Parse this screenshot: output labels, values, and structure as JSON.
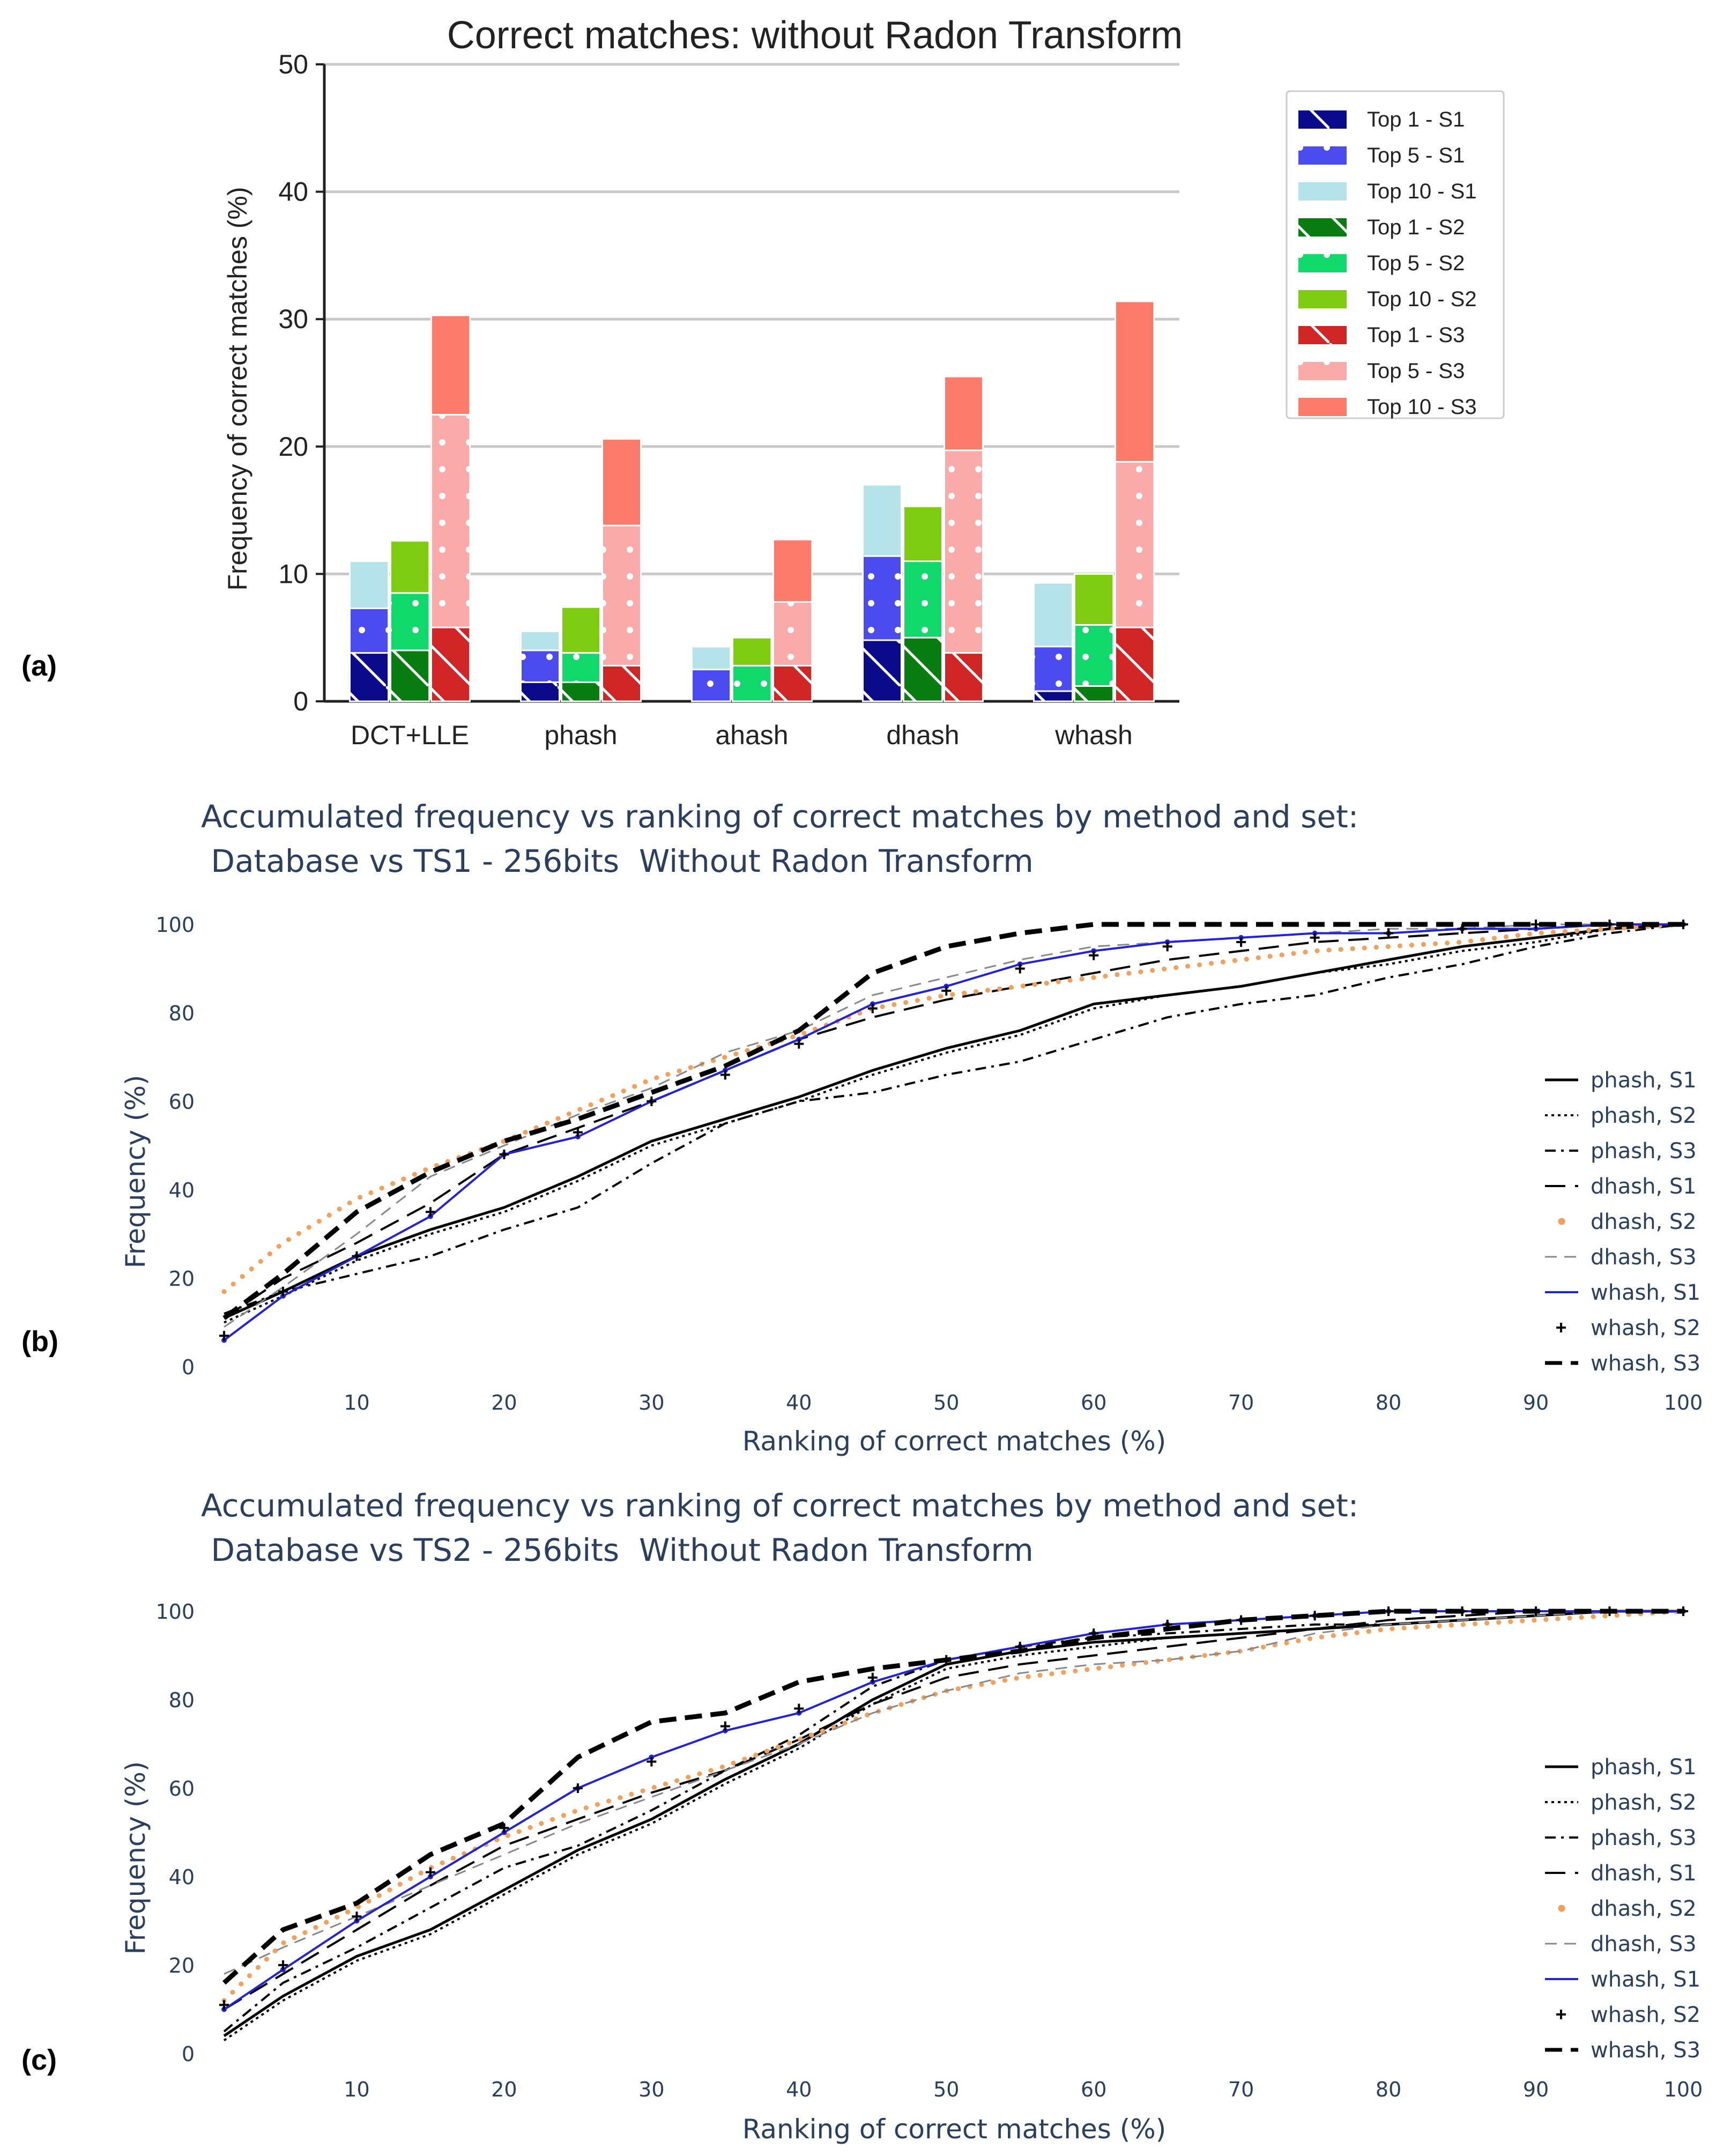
{
  "chart_data": [
    {
      "type": "bar",
      "panel_label": "(a)",
      "title": "Correct matches: without Radon Transform",
      "xlabel": "",
      "ylabel": "Frequency of correct matches (%)",
      "ylim": [
        0,
        50
      ],
      "yticks": [
        "0",
        "10",
        "20",
        "30",
        "40",
        "50"
      ],
      "grid": true,
      "legend_position": "top-right",
      "categories": [
        "DCT+LLE",
        "phash",
        "ahash",
        "dhash",
        "whash"
      ],
      "series": [
        {
          "name": "Top 1 - S1",
          "set": "S1",
          "level": "top1",
          "color": "#0a0a8a",
          "values": [
            3.8,
            1.5,
            0.0,
            4.8,
            0.8
          ]
        },
        {
          "name": "Top 5 - S1",
          "set": "S1",
          "level": "top5",
          "color": "#4b4bef",
          "values": [
            7.3,
            4.0,
            2.5,
            11.4,
            4.3
          ]
        },
        {
          "name": "Top 10 - S1",
          "set": "S1",
          "level": "top10",
          "color": "#b6e2ea",
          "values": [
            11.0,
            5.5,
            4.3,
            17.0,
            9.3
          ]
        },
        {
          "name": "Top 1 - S2",
          "set": "S2",
          "level": "top1",
          "color": "#0a7d12",
          "values": [
            4.0,
            1.5,
            0.0,
            5.0,
            1.2
          ]
        },
        {
          "name": "Top 5 - S2",
          "set": "S2",
          "level": "top5",
          "color": "#10d86a",
          "values": [
            8.5,
            3.8,
            2.8,
            11.0,
            6.0
          ]
        },
        {
          "name": "Top 10 - S2",
          "set": "S2",
          "level": "top10",
          "color": "#7ecb12",
          "values": [
            12.6,
            7.4,
            5.0,
            15.3,
            10.0
          ]
        },
        {
          "name": "Top 1 - S3",
          "set": "S3",
          "level": "top1",
          "color": "#d02525",
          "values": [
            5.8,
            2.8,
            2.8,
            3.8,
            5.8
          ]
        },
        {
          "name": "Top 5 - S3",
          "set": "S3",
          "level": "top5",
          "color": "#fbaaaa",
          "values": [
            22.5,
            13.8,
            7.8,
            19.7,
            18.8
          ]
        },
        {
          "name": "Top 10 - S3",
          "set": "S3",
          "level": "top10",
          "color": "#fb7a6a",
          "values": [
            30.3,
            20.6,
            12.7,
            25.5,
            31.4
          ]
        }
      ]
    },
    {
      "type": "line",
      "panel_label": "(b)",
      "title": "Accumulated frequency vs ranking of correct matches by method and set:",
      "title_line2": " Database vs TS1 - 256bits  Without Radon Transform",
      "xlabel": "Ranking of correct matches (%)",
      "ylabel": "Frequency (%)",
      "xlim": [
        1,
        100
      ],
      "ylim": [
        0,
        100
      ],
      "xticks": [
        "10",
        "20",
        "30",
        "40",
        "50",
        "60",
        "70",
        "80",
        "90",
        "100"
      ],
      "yticks": [
        "0",
        "20",
        "40",
        "60",
        "80",
        "100"
      ],
      "legend_position": "right",
      "series": [
        {
          "name": "phash, S1",
          "color": "#000000",
          "dash": "solid",
          "width": 5,
          "x": [
            1,
            5,
            10,
            15,
            20,
            25,
            30,
            35,
            40,
            45,
            50,
            55,
            60,
            65,
            70,
            75,
            80,
            85,
            90,
            95,
            100
          ],
          "y": [
            11,
            17,
            25,
            31,
            36,
            43,
            51,
            56,
            61,
            67,
            72,
            76,
            82,
            84,
            86,
            89,
            92,
            95,
            97,
            99,
            100
          ]
        },
        {
          "name": "phash, S2",
          "color": "#000000",
          "dash": "dot",
          "width": 4,
          "x": [
            1,
            5,
            10,
            15,
            20,
            25,
            30,
            35,
            40,
            45,
            50,
            55,
            60,
            65,
            70,
            75,
            80,
            85,
            90,
            95,
            100
          ],
          "y": [
            10,
            16,
            24,
            30,
            35,
            42,
            50,
            55,
            60,
            66,
            71,
            75,
            81,
            84,
            86,
            89,
            91,
            94,
            96,
            99,
            100
          ]
        },
        {
          "name": "phash, S3",
          "color": "#000000",
          "dash": "dashdot",
          "width": 4,
          "x": [
            1,
            5,
            10,
            15,
            20,
            25,
            30,
            35,
            40,
            45,
            50,
            55,
            60,
            65,
            70,
            75,
            80,
            85,
            90,
            95,
            100
          ],
          "y": [
            12,
            17,
            21,
            25,
            31,
            36,
            46,
            55,
            60,
            62,
            66,
            69,
            74,
            79,
            82,
            84,
            88,
            91,
            95,
            98,
            100
          ]
        },
        {
          "name": "dhash, S1",
          "color": "#000000",
          "dash": "longdash",
          "width": 4,
          "x": [
            1,
            5,
            10,
            15,
            20,
            25,
            30,
            35,
            40,
            45,
            50,
            55,
            60,
            65,
            70,
            75,
            80,
            85,
            90,
            95,
            100
          ],
          "y": [
            11,
            20,
            28,
            37,
            48,
            54,
            60,
            67,
            74,
            79,
            83,
            86,
            89,
            92,
            94,
            96,
            97,
            98,
            99,
            100,
            100
          ]
        },
        {
          "name": "dhash, S2",
          "color": "#f5a05a",
          "dash": "dots",
          "width": 9,
          "x": [
            1,
            5,
            10,
            15,
            20,
            25,
            30,
            35,
            40,
            45,
            50,
            55,
            60,
            65,
            70,
            75,
            80,
            85,
            90,
            95,
            100
          ],
          "y": [
            17,
            28,
            38,
            45,
            51,
            58,
            65,
            70,
            75,
            81,
            84,
            86,
            88,
            90,
            92,
            94,
            95,
            96,
            98,
            99,
            100
          ]
        },
        {
          "name": "dhash, S3",
          "color": "#888888",
          "dash": "dash",
          "width": 3,
          "x": [
            1,
            5,
            10,
            15,
            20,
            25,
            30,
            35,
            40,
            45,
            50,
            55,
            60,
            65,
            70,
            75,
            80,
            85,
            90,
            95,
            100
          ],
          "y": [
            9,
            18,
            30,
            43,
            50,
            57,
            63,
            71,
            76,
            84,
            88,
            92,
            95,
            96,
            97,
            98,
            99,
            99,
            100,
            100,
            100
          ]
        },
        {
          "name": "whash, S1",
          "color": "#2222dd",
          "dash": "solid",
          "width": 4,
          "markers": "dots",
          "x": [
            1,
            5,
            10,
            15,
            20,
            25,
            30,
            35,
            40,
            45,
            50,
            55,
            60,
            65,
            70,
            75,
            80,
            85,
            90,
            95,
            100
          ],
          "y": [
            6,
            16,
            25,
            34,
            48,
            52,
            60,
            67,
            74,
            82,
            86,
            91,
            94,
            96,
            97,
            98,
            98,
            99,
            99,
            100,
            100
          ]
        },
        {
          "name": "whash, S2",
          "color": "#000000",
          "dash": "none",
          "width": 3,
          "markers": "plus",
          "x": [
            1,
            5,
            10,
            15,
            20,
            25,
            30,
            35,
            40,
            45,
            50,
            55,
            60,
            65,
            70,
            75,
            80,
            85,
            90,
            95,
            100
          ],
          "y": [
            7,
            17,
            25,
            35,
            48,
            53,
            60,
            66,
            73,
            81,
            85,
            90,
            93,
            95,
            96,
            97,
            98,
            99,
            100,
            100,
            100
          ]
        },
        {
          "name": "whash, S3",
          "color": "#000000",
          "dash": "heavydash",
          "width": 9,
          "x": [
            1,
            5,
            10,
            15,
            20,
            25,
            30,
            35,
            40,
            45,
            50,
            55,
            60,
            65,
            70,
            75,
            80,
            85,
            90,
            95,
            100
          ],
          "y": [
            11,
            21,
            35,
            44,
            51,
            56,
            62,
            68,
            76,
            89,
            95,
            98,
            100,
            100,
            100,
            100,
            100,
            100,
            100,
            100,
            100
          ]
        }
      ]
    },
    {
      "type": "line",
      "panel_label": "(c)",
      "title": "Accumulated frequency vs ranking of correct matches by method and set:",
      "title_line2": " Database vs TS2 - 256bits  Without Radon Transform",
      "xlabel": "Ranking of correct matches (%)",
      "ylabel": "Frequency (%)",
      "xlim": [
        1,
        100
      ],
      "ylim": [
        0,
        100
      ],
      "xticks": [
        "10",
        "20",
        "30",
        "40",
        "50",
        "60",
        "70",
        "80",
        "90",
        "100"
      ],
      "yticks": [
        "0",
        "20",
        "40",
        "60",
        "80",
        "100"
      ],
      "legend_position": "right",
      "series": [
        {
          "name": "phash, S1",
          "color": "#000000",
          "dash": "solid",
          "width": 5,
          "x": [
            1,
            5,
            10,
            15,
            20,
            25,
            30,
            35,
            40,
            45,
            50,
            55,
            60,
            65,
            70,
            75,
            80,
            85,
            90,
            95,
            100
          ],
          "y": [
            4,
            13,
            22,
            28,
            37,
            46,
            53,
            62,
            70,
            80,
            88,
            91,
            93,
            94,
            95,
            96,
            97,
            98,
            99,
            100,
            100
          ]
        },
        {
          "name": "phash, S2",
          "color": "#000000",
          "dash": "dot",
          "width": 4,
          "x": [
            1,
            5,
            10,
            15,
            20,
            25,
            30,
            35,
            40,
            45,
            50,
            55,
            60,
            65,
            70,
            75,
            80,
            85,
            90,
            95,
            100
          ],
          "y": [
            3,
            12,
            21,
            27,
            36,
            45,
            52,
            61,
            69,
            79,
            87,
            90,
            92,
            94,
            95,
            96,
            97,
            98,
            99,
            100,
            100
          ]
        },
        {
          "name": "phash, S3",
          "color": "#000000",
          "dash": "dashdot",
          "width": 4,
          "x": [
            1,
            5,
            10,
            15,
            20,
            25,
            30,
            35,
            40,
            45,
            50,
            55,
            60,
            65,
            70,
            75,
            80,
            85,
            90,
            95,
            100
          ],
          "y": [
            5,
            16,
            24,
            33,
            42,
            47,
            55,
            64,
            72,
            83,
            89,
            92,
            94,
            95,
            96,
            97,
            97,
            98,
            99,
            100,
            100
          ]
        },
        {
          "name": "dhash, S1",
          "color": "#000000",
          "dash": "longdash",
          "width": 4,
          "x": [
            1,
            5,
            10,
            15,
            20,
            25,
            30,
            35,
            40,
            45,
            50,
            55,
            60,
            65,
            70,
            75,
            80,
            85,
            90,
            95,
            100
          ],
          "y": [
            10,
            18,
            28,
            38,
            47,
            53,
            59,
            64,
            71,
            79,
            85,
            88,
            90,
            92,
            94,
            96,
            98,
            99,
            100,
            100,
            100
          ]
        },
        {
          "name": "dhash, S2",
          "color": "#f5a05a",
          "dash": "dots",
          "width": 9,
          "x": [
            1,
            5,
            10,
            15,
            20,
            25,
            30,
            35,
            40,
            45,
            50,
            55,
            60,
            65,
            70,
            75,
            80,
            85,
            90,
            95,
            100
          ],
          "y": [
            12,
            25,
            33,
            42,
            49,
            55,
            60,
            65,
            71,
            77,
            82,
            85,
            87,
            89,
            91,
            94,
            96,
            97,
            98,
            99,
            100
          ]
        },
        {
          "name": "dhash, S3",
          "color": "#888888",
          "dash": "dash",
          "width": 3,
          "x": [
            1,
            5,
            10,
            15,
            20,
            25,
            30,
            35,
            40,
            45,
            50,
            55,
            60,
            65,
            70,
            75,
            80,
            85,
            90,
            95,
            100
          ],
          "y": [
            18,
            24,
            31,
            38,
            45,
            52,
            58,
            64,
            70,
            77,
            82,
            86,
            88,
            89,
            91,
            95,
            97,
            98,
            99,
            100,
            100
          ]
        },
        {
          "name": "whash, S1",
          "color": "#2222dd",
          "dash": "solid",
          "width": 4,
          "markers": "dots",
          "x": [
            1,
            5,
            10,
            15,
            20,
            25,
            30,
            35,
            40,
            45,
            50,
            55,
            60,
            65,
            70,
            75,
            80,
            85,
            90,
            95,
            100
          ],
          "y": [
            10,
            19,
            30,
            40,
            50,
            60,
            67,
            73,
            77,
            84,
            89,
            92,
            95,
            97,
            98,
            99,
            100,
            100,
            100,
            100,
            100
          ]
        },
        {
          "name": "whash, S2",
          "color": "#000000",
          "dash": "none",
          "width": 3,
          "markers": "plus",
          "x": [
            1,
            5,
            10,
            15,
            20,
            25,
            30,
            35,
            40,
            45,
            50,
            55,
            60,
            65,
            70,
            75,
            80,
            85,
            90,
            95,
            100
          ],
          "y": [
            11,
            20,
            31,
            41,
            51,
            60,
            66,
            74,
            78,
            85,
            89,
            92,
            95,
            97,
            98,
            99,
            100,
            100,
            100,
            100,
            100
          ]
        },
        {
          "name": "whash, S3",
          "color": "#000000",
          "dash": "heavydash",
          "width": 9,
          "x": [
            1,
            5,
            10,
            15,
            20,
            25,
            30,
            35,
            40,
            45,
            50,
            55,
            60,
            65,
            70,
            75,
            80,
            85,
            90,
            95,
            100
          ],
          "y": [
            16,
            28,
            34,
            45,
            52,
            67,
            75,
            77,
            84,
            87,
            89,
            91,
            94,
            96,
            98,
            99,
            100,
            100,
            100,
            100,
            100
          ]
        }
      ]
    }
  ]
}
